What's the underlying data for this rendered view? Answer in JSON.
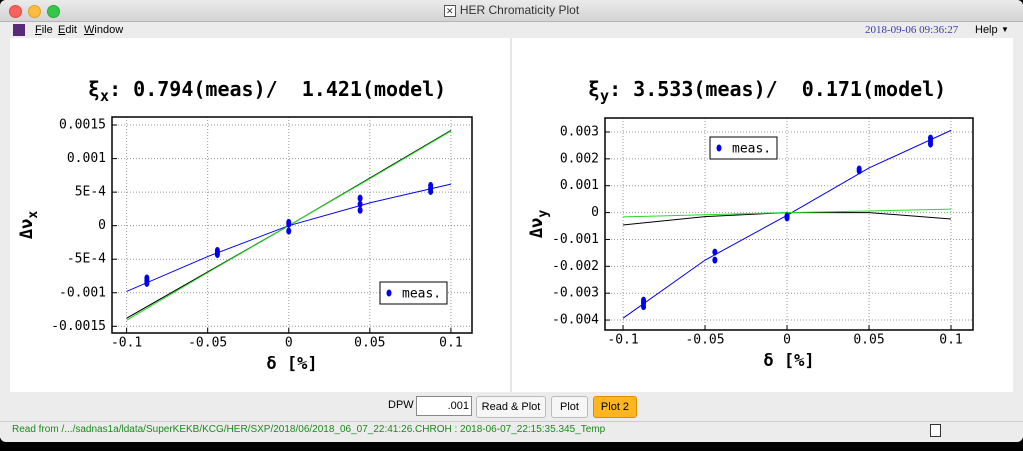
{
  "window": {
    "title": "HER Chromaticity Plot"
  },
  "menu": {
    "items": [
      "File",
      "Edit",
      "Window"
    ],
    "datetime": "2018-09-06 09:36:27",
    "help": "Help"
  },
  "chart_data": [
    {
      "type": "scatter",
      "title_symbol": "ξ",
      "title_subscript": "x",
      "title_rest": ": 0.794(meas)/  1.421(model)",
      "xlabel": "δ [%]",
      "ylabel": "Δν",
      "ylabel_subscript": "x",
      "xlim": [
        -0.109,
        0.113
      ],
      "ylim": [
        -0.0016,
        0.00162
      ],
      "xticks": [
        -0.1,
        -0.05,
        0,
        0.05,
        0.1
      ],
      "yticks": [
        0.0015,
        0.001,
        {
          "value": 0.0005,
          "label": "5E-4"
        },
        0,
        {
          "value": -0.0005,
          "label": "-5E-4"
        },
        -0.001,
        -0.0015
      ],
      "grid": true,
      "legend": "lower right",
      "series": [
        {
          "name": "meas.",
          "color": "#0000ee",
          "x": [
            -0.0875,
            -0.0875,
            -0.0875,
            -0.044,
            -0.044,
            -0.044,
            0,
            0,
            0,
            0.044,
            0.044,
            0.044,
            0.0875,
            0.0875,
            0.0875
          ],
          "values": [
            -0.00078,
            -0.00082,
            -0.00086,
            -0.00037,
            -0.0004,
            -0.00043,
            5e-05,
            2e-05,
            -8e-05,
            0.00041,
            0.00032,
            0.00023,
            0.0006,
            0.00056,
            0.00051
          ]
        }
      ],
      "lines": [
        {
          "color": "#0000ee",
          "x": [
            -0.1,
            -0.05,
            0,
            0.05,
            0.1
          ],
          "values": [
            -0.00098,
            -0.00046,
            0,
            0.00034,
            0.00062
          ]
        },
        {
          "color": "#000000",
          "x": [
            -0.1,
            -0.05,
            0,
            0.05,
            0.1
          ],
          "values": [
            -0.00138,
            -0.00069,
            0,
            0.00071,
            0.00142
          ]
        },
        {
          "color": "#22dd22",
          "x": [
            -0.1,
            -0.05,
            0,
            0.05,
            0.1
          ],
          "values": [
            -0.00141,
            -0.0007,
            0,
            0.0007,
            0.00141
          ]
        }
      ]
    },
    {
      "type": "scatter",
      "title_symbol": "ξ",
      "title_subscript": "y",
      "title_rest": ": 3.533(meas)/  0.171(model)",
      "xlabel": "δ [%]",
      "ylabel": "Δν",
      "ylabel_subscript": "y",
      "xlim": [
        -0.111,
        0.1134
      ],
      "ylim": [
        -0.00437,
        0.00352
      ],
      "xticks": [
        -0.1,
        -0.05,
        0,
        0.05,
        0.1
      ],
      "yticks": [
        0.003,
        0.002,
        0.001,
        0,
        -0.001,
        -0.002,
        -0.003,
        -0.004
      ],
      "grid": true,
      "legend": "upper left",
      "series": [
        {
          "name": "meas.",
          "color": "#0000ee",
          "x": [
            -0.0875,
            -0.0875,
            -0.0875,
            -0.044,
            -0.044,
            0,
            0,
            0.044,
            0.044,
            0.0875,
            0.0875,
            0.0875
          ],
          "values": [
            -0.00326,
            -0.00337,
            -0.0035,
            -0.00147,
            -0.00177,
            -0.00013,
            -0.0002,
            0.00162,
            0.00155,
            0.00277,
            0.00266,
            0.00255
          ]
        }
      ],
      "lines": [
        {
          "color": "#0000ee",
          "x": [
            -0.1,
            -0.05,
            0,
            0.05,
            0.1
          ],
          "values": [
            -0.00393,
            -0.00177,
            -0.0001,
            0.00166,
            0.00306
          ]
        },
        {
          "color": "#000000",
          "x": [
            -0.1,
            -0.05,
            0,
            0.05,
            0.1
          ],
          "values": [
            -0.00046,
            -0.00015,
            0,
            0,
            -0.00024
          ]
        },
        {
          "color": "#22dd22",
          "x": [
            -0.1,
            -0.05,
            0,
            0.05,
            0.1
          ],
          "values": [
            -0.00016,
            -8e-05,
            0,
            6e-05,
            0.00013
          ]
        }
      ]
    }
  ],
  "controls": {
    "dpw_label": "DPW",
    "dpw_value": ".001",
    "buttons": [
      "Read & Plot",
      "Plot",
      "Plot 2"
    ]
  },
  "status": {
    "text": "Read from /.../sadnas1a/ldata/SuperKEKB/KCG/HER/SXP/2018/06/2018_06_07_22:41:26.CHROH : 2018-06-07_22:15:35.345_Temp"
  }
}
